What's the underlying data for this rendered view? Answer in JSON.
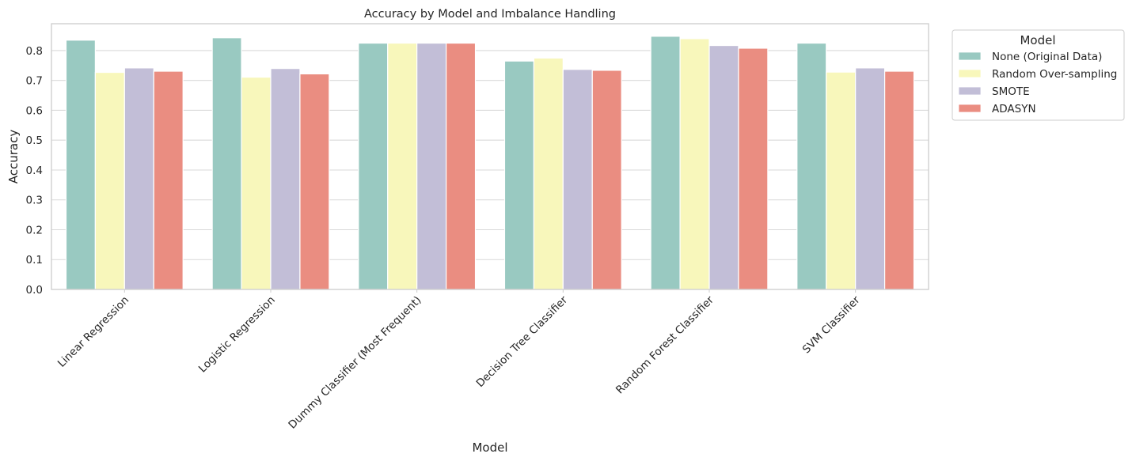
{
  "chart_data": {
    "type": "bar",
    "title": "Accuracy by Model and Imbalance Handling",
    "xlabel": "Model",
    "ylabel": "Accuracy",
    "ylim": [
      0,
      0.89
    ],
    "yticks": [
      "0.0",
      "0.1",
      "0.2",
      "0.3",
      "0.4",
      "0.5",
      "0.6",
      "0.7",
      "0.8"
    ],
    "grid": true,
    "legend_title": "Model",
    "legend_position": "outside-upper-right",
    "categories": [
      "Linear Regression",
      "Logistic Regression",
      "Dummy Classifier (Most Frequent)",
      "Decision Tree Classifier",
      "Random Forest Classifier",
      "SVM Classifier"
    ],
    "series": [
      {
        "name": "None (Original Data)",
        "color": "#99c9c1",
        "values": [
          0.835,
          0.843,
          0.825,
          0.765,
          0.848,
          0.825
        ]
      },
      {
        "name": "Random Over-sampling",
        "color": "#f8f7bb",
        "values": [
          0.727,
          0.711,
          0.825,
          0.775,
          0.84,
          0.728
        ]
      },
      {
        "name": "SMOTE",
        "color": "#c2bed7",
        "values": [
          0.742,
          0.74,
          0.825,
          0.737,
          0.817,
          0.742
        ]
      },
      {
        "name": "ADASYN",
        "color": "#ea8d81",
        "values": [
          0.731,
          0.722,
          0.825,
          0.734,
          0.808,
          0.731
        ]
      }
    ]
  }
}
